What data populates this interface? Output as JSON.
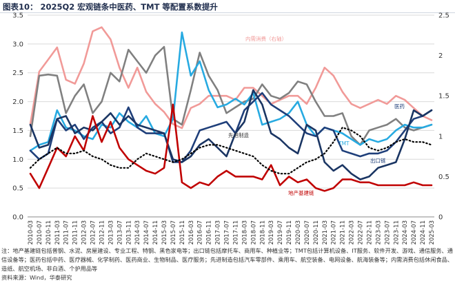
{
  "title": "图表10： 2025Q2 宏观链条中医药、TMT 等配置系数提升",
  "notes": "注：地产基建链包括普钢、水泥、房屋建设、专业工程、特钢、黑色家电等；出口链包括摩托车、商用车、种植业等；TMT包括计算机设备、IT服务、软件开发、游戏、通信服务、通信设备等；医药包括中药、医疗器械、化学制药、医药商业、生物制品、医疗服务；先进制造包括汽车零部件、乘用车、航空装备、电网设备、航海装备等；内需消费包括休闲食品、造纸、航空机场、非白酒、个护用品等",
  "source": "资料来源：Wind，华泰研究",
  "colors": {
    "domestic": "#f19a98",
    "pharma": "#808080",
    "tmt": "#27aae1",
    "advanced": "#1f3f7a",
    "export": "#1a3563",
    "property": "#c00000",
    "grid": "#d9d9d9"
  },
  "chart_data": {
    "type": "line",
    "x": [
      "2010-03",
      "2010-07",
      "2010-11",
      "2011-03",
      "2011-07",
      "2011-11",
      "2012-03",
      "2012-07",
      "2012-11",
      "2013-03",
      "2013-07",
      "2013-11",
      "2014-03",
      "2014-07",
      "2014-11",
      "2015-03",
      "2015-07",
      "2015-11",
      "2016-03",
      "2016-07",
      "2016-11",
      "2017-03",
      "2017-07",
      "2017-11",
      "2018-03",
      "2018-07",
      "2018-11",
      "2019-03",
      "2019-07",
      "2019-11",
      "2020-03",
      "2020-07",
      "2020-11",
      "2021-03",
      "2021-07",
      "2021-11",
      "2022-03",
      "2022-07",
      "2022-11",
      "2023-03",
      "2023-07",
      "2023-11",
      "2024-03",
      "2024-07",
      "2024-11",
      "2025-03"
    ],
    "ylim_left": [
      0,
      3.5
    ],
    "ylim_right": [
      0,
      2.5
    ],
    "yticks_left": [
      "0.0",
      "0.5",
      "1.0",
      "1.5",
      "2.0",
      "2.5",
      "3.0",
      "3.5"
    ],
    "yticks_right": [
      "0",
      "0.5",
      "1",
      "1.5",
      "2",
      "2.5"
    ],
    "series": [
      {
        "name": "内需消费（右轴）",
        "key": "domestic",
        "axis": "right",
        "style": "solid",
        "values": [
          1.15,
          1.8,
          1.95,
          2.1,
          1.7,
          1.65,
          1.9,
          2.3,
          2.35,
          2.2,
          1.85,
          1.6,
          1.85,
          1.55,
          1.4,
          1.3,
          1.15,
          1.1,
          1.35,
          1.4,
          1.5,
          1.5,
          1.5,
          1.45,
          1.6,
          1.6,
          1.5,
          1.4,
          1.45,
          1.5,
          1.5,
          1.4,
          1.6,
          1.85,
          1.75,
          1.55,
          1.4,
          1.35,
          1.4,
          1.45,
          1.4,
          1.5,
          1.45,
          1.35,
          1.25,
          1.2
        ]
      },
      {
        "name": "医药",
        "key": "pharma",
        "axis": "left",
        "style": "solid",
        "values": [
          1.4,
          2.45,
          2.47,
          2.45,
          1.8,
          2.1,
          2.3,
          1.8,
          2.0,
          2.5,
          2.35,
          2.9,
          2.7,
          2.5,
          2.8,
          2.95,
          1.7,
          1.6,
          2.2,
          2.85,
          2.45,
          2.2,
          1.8,
          1.9,
          2.0,
          2.05,
          2.3,
          2.1,
          2.05,
          2.15,
          2.35,
          2.3,
          2.0,
          1.75,
          1.75,
          1.8,
          1.4,
          1.25,
          1.5,
          1.55,
          1.6,
          1.7,
          1.55,
          1.5,
          1.55,
          1.6
        ]
      },
      {
        "name": "TMT",
        "key": "tmt",
        "axis": "left",
        "style": "solid",
        "values": [
          1.15,
          1.25,
          1.3,
          1.85,
          1.55,
          1.5,
          1.4,
          1.35,
          1.6,
          1.55,
          1.8,
          1.65,
          1.55,
          1.75,
          1.45,
          1.4,
          1.7,
          3.2,
          2.45,
          2.7,
          2.2,
          1.9,
          1.95,
          2.05,
          1.95,
          2.15,
          1.6,
          1.65,
          1.7,
          1.8,
          2.0,
          1.6,
          1.4,
          1.55,
          1.5,
          1.45,
          1.35,
          1.25,
          1.35,
          1.3,
          1.35,
          1.5,
          1.6,
          1.55,
          1.55,
          1.6
        ]
      },
      {
        "name": "先进制造",
        "key": "advanced",
        "axis": "left",
        "style": "solid",
        "values": [
          1.15,
          1.0,
          1.1,
          1.7,
          1.5,
          1.6,
          1.35,
          1.55,
          1.65,
          1.45,
          1.55,
          1.9,
          1.55,
          1.45,
          1.45,
          1.45,
          0.95,
          0.95,
          1.15,
          1.5,
          1.55,
          1.6,
          1.65,
          1.45,
          1.85,
          2.0,
          2.15,
          1.95,
          1.85,
          1.75,
          1.6,
          1.45,
          1.4,
          1.55,
          1.5,
          1.15,
          1.1,
          1.05,
          1.1,
          1.1,
          1.15,
          1.3,
          1.5,
          1.7,
          1.75,
          1.85
        ]
      },
      {
        "name": "出口链",
        "key": "export",
        "axis": "left",
        "style": "solid",
        "values": [
          1.6,
          1.2,
          1.25,
          1.7,
          1.75,
          1.45,
          1.55,
          1.5,
          1.65,
          1.8,
          1.6,
          1.75,
          1.6,
          1.55,
          1.5,
          1.45,
          1.0,
          0.95,
          1.05,
          1.25,
          1.35,
          1.2,
          1.05,
          1.45,
          1.65,
          2.2,
          1.95,
          1.45,
          1.35,
          1.2,
          1.1,
          1.6,
          1.5,
          0.95,
          0.8,
          0.9,
          0.75,
          0.65,
          0.7,
          0.85,
          0.9,
          0.95,
          1.35,
          1.85,
          1.75,
          1.85
        ]
      },
      {
        "name": "地产基建链",
        "key": "property",
        "axis": "left",
        "style": "solid",
        "values": [
          0.75,
          0.5,
          0.85,
          1.2,
          1.05,
          1.4,
          1.15,
          1.75,
          1.3,
          1.65,
          1.2,
          1.0,
          0.9,
          0.8,
          0.75,
          0.85,
          1.95,
          0.6,
          0.5,
          0.6,
          0.55,
          0.7,
          0.8,
          0.7,
          0.7,
          0.7,
          0.65,
          0.9,
          0.55,
          0.7,
          0.6,
          0.65,
          0.5,
          0.45,
          0.5,
          0.65,
          0.65,
          0.6,
          0.6,
          0.55,
          0.55,
          0.55,
          0.55,
          0.6,
          0.55,
          0.55
        ]
      },
      {
        "name": "",
        "key": "dotted",
        "axis": "left",
        "style": "dotted",
        "values": [
          0.85,
          1.0,
          1.1,
          1.2,
          1.1,
          1.1,
          1.15,
          1.05,
          1.0,
          0.9,
          0.85,
          0.85,
          1.0,
          1.1,
          1.05,
          1.0,
          0.95,
          1.0,
          1.1,
          1.2,
          1.25,
          1.25,
          1.2,
          1.15,
          1.1,
          1.05,
          0.9,
          0.8,
          0.75,
          0.75,
          0.85,
          0.95,
          1.0,
          1.1,
          1.3,
          1.55,
          1.5,
          1.4,
          1.2,
          1.15,
          1.2,
          1.3,
          1.35,
          1.3,
          1.3,
          1.25
        ]
      }
    ],
    "labels": {
      "domestic": "内需消费（右轴）",
      "pharma": "医药",
      "tmt": "TMT",
      "advanced": "先进制造",
      "export": "出口链",
      "property": "地产基建链"
    }
  }
}
